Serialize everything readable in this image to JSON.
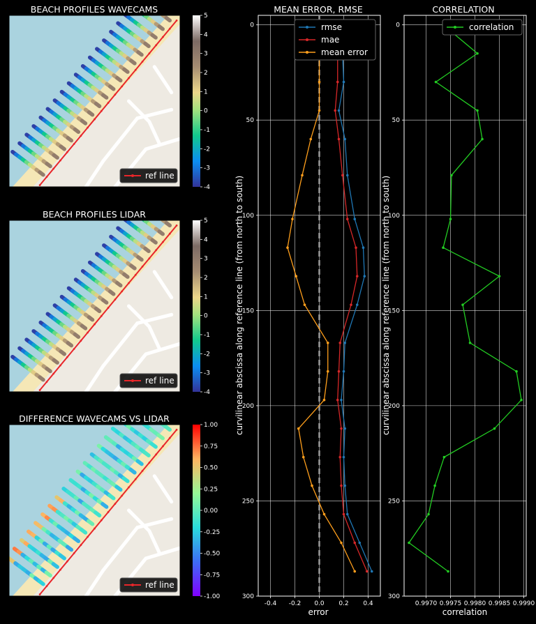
{
  "colors": {
    "background": "#000000",
    "sea": "#aad3df",
    "sand": "#f5e7b6",
    "land": "#eeeae2",
    "ref_line": "#e8262a",
    "rmse": "#1f77b4",
    "mae": "#d62728",
    "mean_error": "#ff9f1c",
    "correlation": "#22cc22",
    "zero_line": "#9a9a9a"
  },
  "maps": [
    {
      "title": "BEACH PROFILES WAVECAMS",
      "legend": "ref line",
      "colorbar_ticks": [
        "5",
        "4",
        "3",
        "2",
        "1",
        "0",
        "-1",
        "-2",
        "-3",
        "-4"
      ],
      "colormap": "terrain"
    },
    {
      "title": "BEACH PROFILES LIDAR",
      "legend": "ref line",
      "colorbar_ticks": [
        "5",
        "4",
        "3",
        "2",
        "1",
        "0",
        "-1",
        "-2",
        "-3",
        "-4"
      ],
      "colormap": "terrain"
    },
    {
      "title": "DIFFERENCE WAVECAMS VS LIDAR",
      "legend": "ref line",
      "colorbar_ticks": [
        "1.00",
        "0.75",
        "0.50",
        "0.25",
        "0.00",
        "-0.25",
        "-0.50",
        "-0.75",
        "-1.00"
      ],
      "colormap": "rainbow"
    }
  ],
  "chart_data": [
    {
      "type": "line",
      "title": "MEAN ERROR, RMSE",
      "xlabel": "error",
      "ylabel": "curvilinear abscissa along reference line (from north to south)",
      "xlim": [
        -0.5,
        0.5
      ],
      "ylim": [
        300,
        -5
      ],
      "xticks": [
        "-0.4",
        "-0.2",
        "0.0",
        "0.2",
        "0.4"
      ],
      "yticks": [
        "0",
        "50",
        "100",
        "150",
        "200",
        "250",
        "300"
      ],
      "grid": true,
      "legend_position": "top-right",
      "y": [
        0,
        15,
        30,
        45,
        60,
        79,
        102,
        117,
        132,
        147,
        167,
        182,
        197,
        212,
        227,
        242,
        257,
        272,
        287
      ],
      "series": [
        {
          "name": "rmse",
          "values": [
            0.18,
            0.19,
            0.2,
            0.16,
            0.21,
            0.23,
            0.29,
            0.36,
            0.37,
            0.31,
            0.21,
            0.2,
            0.18,
            0.21,
            0.2,
            0.21,
            0.23,
            0.33,
            0.43
          ]
        },
        {
          "name": "mae",
          "values": [
            0.13,
            0.15,
            0.15,
            0.13,
            0.16,
            0.19,
            0.23,
            0.3,
            0.31,
            0.26,
            0.17,
            0.16,
            0.15,
            0.18,
            0.17,
            0.18,
            0.2,
            0.29,
            0.39
          ]
        },
        {
          "name": "mean error",
          "values": [
            0.0,
            0.0,
            0.0,
            0.0,
            -0.07,
            -0.14,
            -0.22,
            -0.26,
            -0.19,
            -0.12,
            0.07,
            0.07,
            0.04,
            -0.17,
            -0.13,
            -0.06,
            0.04,
            0.18,
            0.29
          ]
        }
      ],
      "zero_line": true
    },
    {
      "type": "line",
      "title": "CORRELATION",
      "xlabel": "correlation",
      "ylabel": "curvilinear abscissa along reference line (from north to south)",
      "xlim": [
        0.99655,
        0.99905
      ],
      "ylim": [
        300,
        -5
      ],
      "xticks": [
        "0.9970",
        "0.9975",
        "0.9980",
        "0.9985",
        "0.9990"
      ],
      "yticks": [
        "0",
        "50",
        "100",
        "150",
        "200",
        "250",
        "300"
      ],
      "grid": true,
      "legend_position": "top-right",
      "y": [
        0,
        15,
        30,
        45,
        60,
        79,
        102,
        117,
        132,
        147,
        167,
        182,
        197,
        212,
        227,
        242,
        257,
        272,
        287
      ],
      "series": [
        {
          "name": "correlation",
          "values": [
            0.99735,
            0.99805,
            0.9972,
            0.99805,
            0.99815,
            0.99752,
            0.9975,
            0.99735,
            0.9985,
            0.99775,
            0.9979,
            0.99885,
            0.99895,
            0.9984,
            0.99737,
            0.99718,
            0.99705,
            0.99665,
            0.99745
          ]
        }
      ]
    }
  ]
}
